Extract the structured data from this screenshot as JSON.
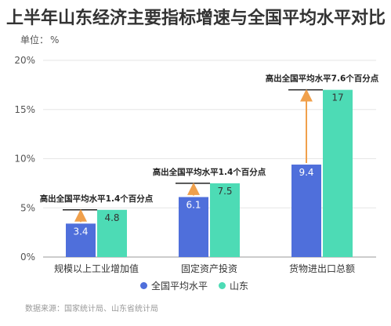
{
  "header": {
    "title": "上半年山东经济主要指标增速与全国平均水平对比",
    "unit_label": "单位：",
    "unit_value": "%"
  },
  "source": "数据来源：国家统计局、山东省统计局",
  "colors": {
    "national": "#4f6fdb",
    "shandong": "#4ddbb5",
    "arrow": "#f0a04b",
    "gridline": "#e6e6e6",
    "axis": "#999999"
  },
  "chart_data": {
    "type": "bar",
    "categories": [
      "规模以上工业增加值",
      "固定资产投资",
      "货物进出口总额"
    ],
    "series": [
      {
        "name": "全国平均水平",
        "values": [
          3.4,
          6.1,
          9.4
        ]
      },
      {
        "name": "山东",
        "values": [
          4.8,
          7.5,
          17
        ]
      }
    ],
    "value_labels": {
      "national": [
        "3.4",
        "6.1",
        "9.4"
      ],
      "shandong": [
        "4.8",
        "7.5",
        "17"
      ]
    },
    "annotations": [
      "高出全国平均水平1.4个百分点",
      "高出全国平均水平1.4个百分点",
      "高出全国平均水平7.6个百分点"
    ],
    "ylim": [
      0,
      20
    ],
    "yticks": [
      0,
      5,
      10,
      15,
      20
    ],
    "ytick_labels": [
      "0%",
      "5%",
      "10%",
      "15%",
      "20%"
    ],
    "grid": true,
    "legend_position": "bottom"
  }
}
